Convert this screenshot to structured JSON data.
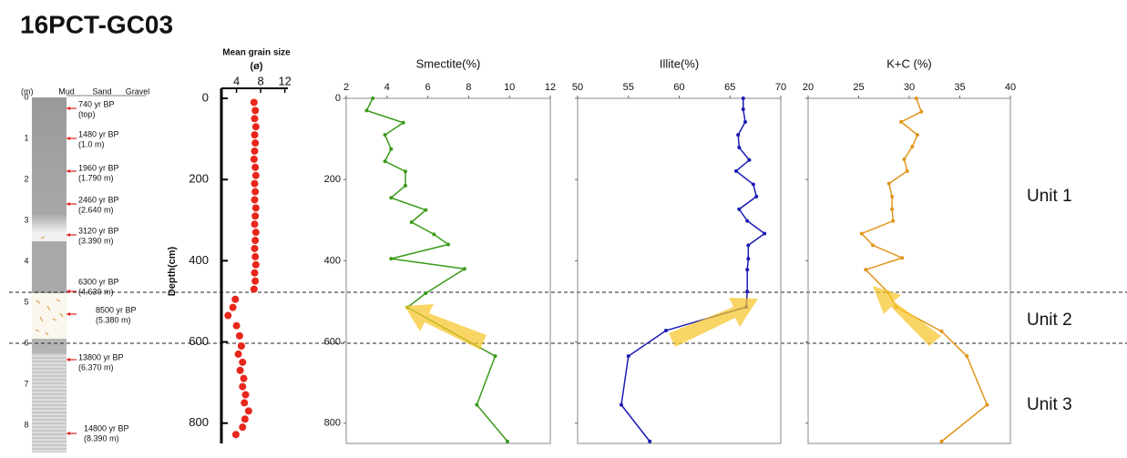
{
  "title": "16PCT-GC03",
  "core_log": {
    "depth_unit": "(m)",
    "depth_ticks": [
      0,
      1,
      2,
      3,
      4,
      5,
      6,
      7,
      8
    ],
    "columns": [
      "Mud",
      "Sand",
      "Gravel"
    ],
    "dates": [
      {
        "age": "740 yr BP",
        "depth": "(top)"
      },
      {
        "age": "1480 yr BP",
        "depth": "(1.0 m)"
      },
      {
        "age": "1960 yr BP",
        "depth": "(1.790 m)"
      },
      {
        "age": "2460 yr BP",
        "depth": "(2.640 m)"
      },
      {
        "age": "3120 yr BP",
        "depth": "(3.390 m)"
      },
      {
        "age": "6300 yr BP",
        "depth": "(4.630 m)"
      },
      {
        "age": "8500 yr BP",
        "depth": "(5.380 m)"
      },
      {
        "age": "13800 yr BP",
        "depth": "(6.370 m)"
      },
      {
        "age": "14800 yr BP",
        "depth": "(8.390 m)"
      }
    ]
  },
  "units": [
    "Unit 1",
    "Unit 2",
    "Unit 3"
  ],
  "chart_data": [
    {
      "type": "scatter",
      "title": "Mean grain size",
      "subtitle": "(ø)",
      "ylabel": "Depth(cm)",
      "color": "#e8261b",
      "xlim": [
        1.5,
        12.5
      ],
      "xticks": [
        4,
        8,
        12
      ],
      "ylim": [
        0,
        850
      ],
      "yticks": [
        0,
        200,
        400,
        600,
        800
      ],
      "y_inverted": true,
      "frame": false,
      "ytick_labels": true,
      "y": [
        10,
        30,
        50,
        70,
        90,
        110,
        130,
        150,
        170,
        190,
        210,
        230,
        250,
        270,
        290,
        310,
        330,
        350,
        370,
        390,
        410,
        430,
        450,
        470,
        495,
        515,
        535,
        560,
        585,
        610,
        630,
        650,
        670,
        690,
        710,
        730,
        750,
        770,
        790,
        810,
        828
      ],
      "x": [
        6.9,
        7.1,
        7.0,
        7.2,
        7.0,
        7.1,
        7.0,
        6.9,
        7.1,
        7.2,
        7.0,
        7.1,
        7.0,
        7.2,
        7.1,
        7.0,
        7.2,
        7.1,
        7.0,
        7.1,
        7.2,
        7.0,
        7.1,
        6.9,
        3.8,
        3.4,
        2.6,
        4.0,
        4.5,
        4.8,
        4.3,
        5.0,
        4.6,
        5.2,
        5.0,
        5.5,
        5.3,
        6.0,
        5.4,
        5.0,
        3.9
      ]
    },
    {
      "type": "line",
      "title": "Smectite(%)",
      "color": "#3a9a1a",
      "xlim": [
        2,
        12
      ],
      "xticks": [
        2,
        4,
        6,
        8,
        10,
        12
      ],
      "ylim": [
        0,
        850
      ],
      "yticks": [
        0,
        200,
        400,
        600,
        800
      ],
      "y_inverted": true,
      "frame": true,
      "ytick_labels": true,
      "y": [
        0,
        30,
        60,
        90,
        125,
        155,
        180,
        215,
        245,
        275,
        305,
        335,
        360,
        395,
        420,
        480,
        515,
        635,
        755,
        845
      ],
      "x": [
        3.3,
        3.0,
        4.8,
        3.9,
        4.2,
        3.9,
        4.9,
        4.9,
        4.2,
        5.9,
        5.2,
        6.3,
        7.0,
        4.2,
        7.8,
        5.9,
        5.0,
        9.3,
        8.4,
        9.9
      ]
    },
    {
      "type": "line",
      "title": "Illite(%)",
      "color": "#1a1ab4",
      "xlim": [
        50,
        70
      ],
      "xticks": [
        50,
        55,
        60,
        65,
        70
      ],
      "ylim": [
        0,
        850
      ],
      "yticks": [
        0,
        200,
        400,
        600,
        800
      ],
      "y_inverted": true,
      "frame": true,
      "ytick_labels": false,
      "y": [
        0,
        27,
        58,
        90,
        121,
        152,
        179,
        212,
        242,
        273,
        302,
        333,
        362,
        395,
        422,
        476,
        514,
        572,
        635,
        755,
        845
      ],
      "x": [
        66.3,
        66.3,
        66.5,
        65.8,
        65.9,
        66.9,
        65.6,
        67.3,
        67.6,
        65.9,
        66.7,
        68.4,
        66.8,
        66.8,
        66.7,
        66.7,
        66.6,
        58.7,
        55.0,
        54.3,
        57.1
      ]
    },
    {
      "type": "line",
      "title": "K+C (%)",
      "color": "#e0951a",
      "xlim": [
        20,
        40
      ],
      "xticks": [
        20,
        25,
        30,
        35,
        40
      ],
      "ylim": [
        0,
        850
      ],
      "yticks": [
        0,
        200,
        400,
        600,
        800
      ],
      "y_inverted": true,
      "frame": true,
      "ytick_labels": false,
      "y": [
        0,
        33,
        58,
        90,
        119,
        150,
        179,
        210,
        242,
        273,
        302,
        333,
        362,
        393,
        422,
        478,
        514,
        574,
        635,
        755,
        845
      ],
      "x": [
        30.7,
        31.2,
        29.2,
        30.8,
        30.3,
        29.5,
        29.8,
        28.0,
        28.3,
        28.3,
        28.4,
        25.3,
        26.4,
        29.3,
        25.7,
        27.9,
        28.7,
        33.2,
        35.7,
        37.7,
        33.2
      ]
    }
  ]
}
